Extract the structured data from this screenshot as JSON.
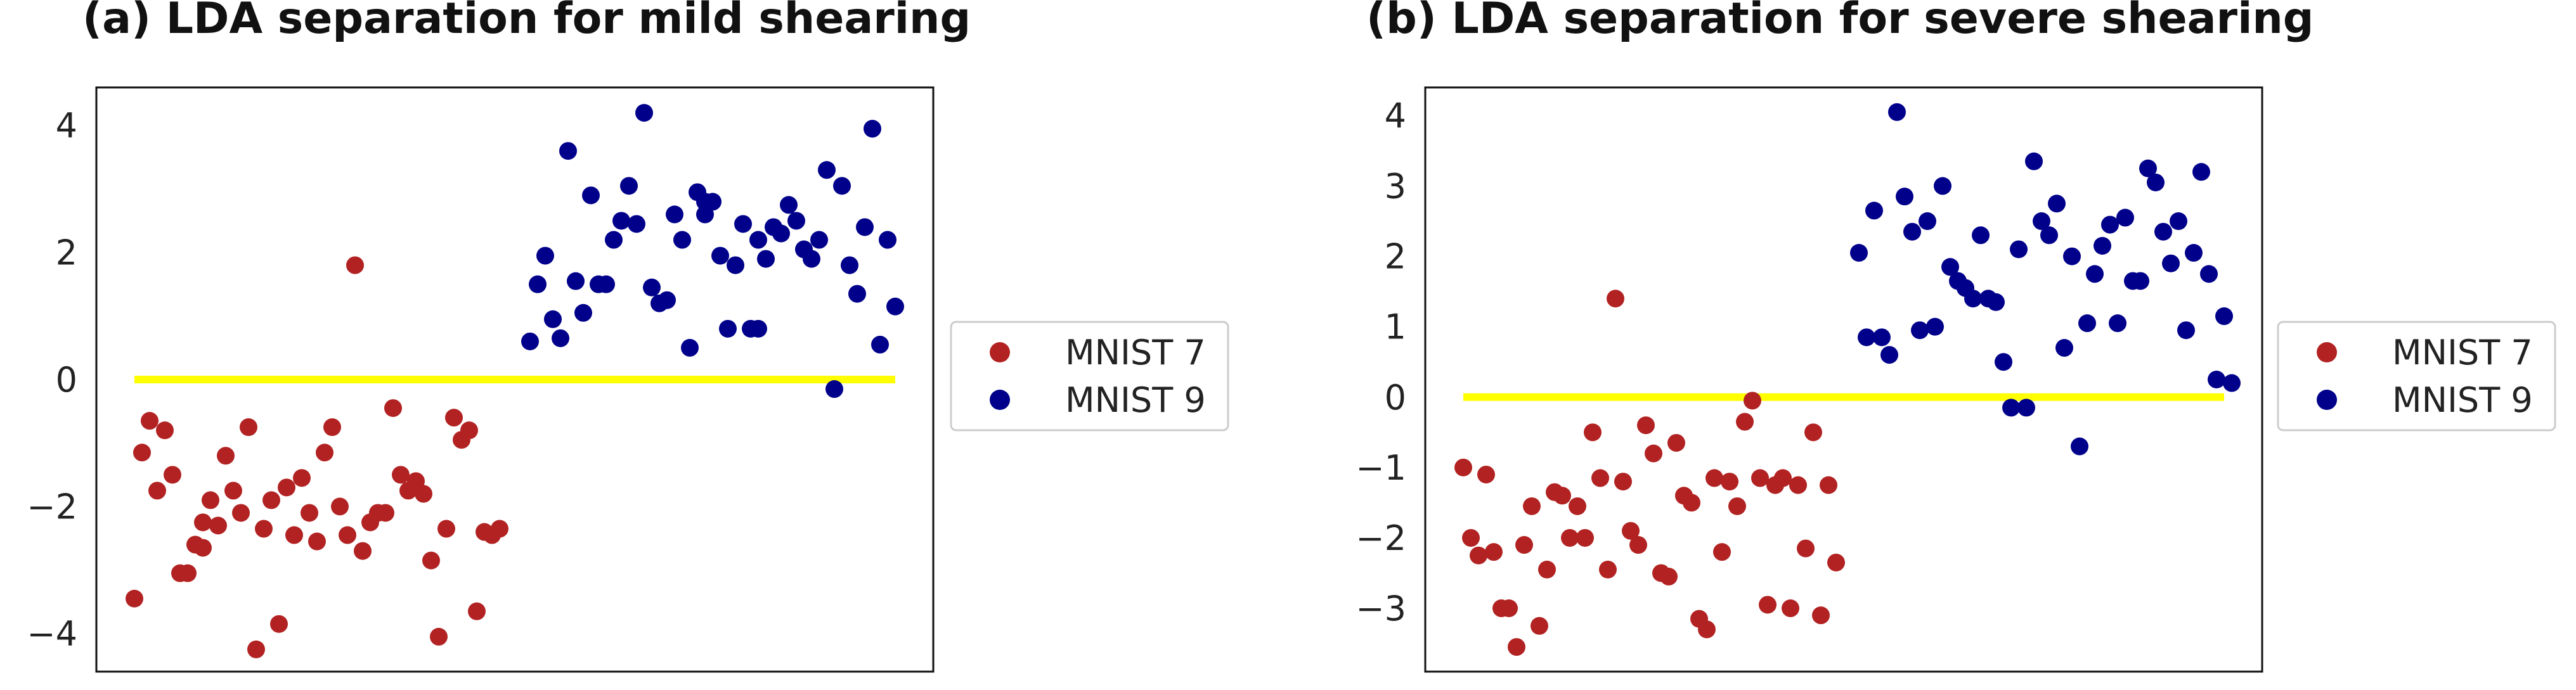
{
  "chart_data": [
    {
      "type": "scatter",
      "title": "(a) LDA separation for mild shearing",
      "xlabel": "",
      "ylabel": "",
      "xlim": [
        -0.05,
        1.05
      ],
      "ylim": [
        -4.6,
        4.6
      ],
      "yticks": [
        4,
        2,
        0,
        -2,
        -4
      ],
      "ytick_labels": [
        "4",
        "2",
        "0",
        "−2",
        "−4"
      ],
      "grid": false,
      "legend": "outside-right",
      "threshold_line": {
        "y": 0,
        "x_range": [
          0.0,
          1.0
        ],
        "color": "#ffff00"
      },
      "series": [
        {
          "name": "MNIST 7",
          "color": "#b22222",
          "points": [
            [
              0.0,
              -3.45
            ],
            [
              0.01,
              -1.15
            ],
            [
              0.02,
              -0.65
            ],
            [
              0.03,
              -1.75
            ],
            [
              0.04,
              -0.8
            ],
            [
              0.05,
              -1.5
            ],
            [
              0.06,
              -3.05
            ],
            [
              0.07,
              -3.05
            ],
            [
              0.08,
              -2.6
            ],
            [
              0.09,
              -2.25
            ],
            [
              0.09,
              -2.65
            ],
            [
              0.1,
              -1.9
            ],
            [
              0.11,
              -2.3
            ],
            [
              0.12,
              -1.2
            ],
            [
              0.13,
              -1.75
            ],
            [
              0.14,
              -2.1
            ],
            [
              0.15,
              -0.75
            ],
            [
              0.16,
              -4.25
            ],
            [
              0.17,
              -2.35
            ],
            [
              0.18,
              -1.9
            ],
            [
              0.19,
              -3.85
            ],
            [
              0.2,
              -1.7
            ],
            [
              0.21,
              -2.45
            ],
            [
              0.22,
              -1.55
            ],
            [
              0.23,
              -2.1
            ],
            [
              0.24,
              -2.55
            ],
            [
              0.25,
              -1.15
            ],
            [
              0.26,
              -0.75
            ],
            [
              0.27,
              -2.0
            ],
            [
              0.28,
              -2.45
            ],
            [
              0.29,
              1.8
            ],
            [
              0.3,
              -2.7
            ],
            [
              0.31,
              -2.25
            ],
            [
              0.32,
              -2.1
            ],
            [
              0.33,
              -2.1
            ],
            [
              0.34,
              -0.45
            ],
            [
              0.35,
              -1.5
            ],
            [
              0.36,
              -1.75
            ],
            [
              0.37,
              -1.6
            ],
            [
              0.38,
              -1.8
            ],
            [
              0.39,
              -2.85
            ],
            [
              0.4,
              -4.05
            ],
            [
              0.41,
              -2.35
            ],
            [
              0.42,
              -0.6
            ],
            [
              0.43,
              -0.95
            ],
            [
              0.44,
              -0.8
            ],
            [
              0.45,
              -3.65
            ],
            [
              0.46,
              -2.4
            ],
            [
              0.47,
              -2.45
            ],
            [
              0.48,
              -2.35
            ]
          ]
        },
        {
          "name": "MNIST 9",
          "color": "#00008b",
          "points": [
            [
              0.52,
              0.6
            ],
            [
              0.53,
              1.5
            ],
            [
              0.54,
              1.95
            ],
            [
              0.55,
              0.95
            ],
            [
              0.56,
              0.65
            ],
            [
              0.57,
              3.6
            ],
            [
              0.58,
              1.55
            ],
            [
              0.59,
              1.05
            ],
            [
              0.6,
              2.9
            ],
            [
              0.61,
              1.5
            ],
            [
              0.62,
              1.5
            ],
            [
              0.63,
              2.2
            ],
            [
              0.64,
              2.5
            ],
            [
              0.65,
              3.05
            ],
            [
              0.66,
              2.45
            ],
            [
              0.67,
              4.2
            ],
            [
              0.68,
              1.45
            ],
            [
              0.69,
              1.2
            ],
            [
              0.7,
              1.25
            ],
            [
              0.71,
              2.6
            ],
            [
              0.72,
              2.2
            ],
            [
              0.73,
              0.5
            ],
            [
              0.74,
              2.95
            ],
            [
              0.75,
              2.8
            ],
            [
              0.75,
              2.6
            ],
            [
              0.76,
              2.8
            ],
            [
              0.77,
              1.95
            ],
            [
              0.78,
              0.8
            ],
            [
              0.79,
              1.8
            ],
            [
              0.8,
              2.45
            ],
            [
              0.81,
              0.8
            ],
            [
              0.82,
              2.2
            ],
            [
              0.82,
              0.8
            ],
            [
              0.83,
              1.9
            ],
            [
              0.84,
              2.4
            ],
            [
              0.85,
              2.3
            ],
            [
              0.86,
              2.75
            ],
            [
              0.87,
              2.5
            ],
            [
              0.88,
              2.05
            ],
            [
              0.89,
              1.9
            ],
            [
              0.9,
              2.2
            ],
            [
              0.91,
              3.3
            ],
            [
              0.92,
              -0.15
            ],
            [
              0.93,
              3.05
            ],
            [
              0.94,
              1.8
            ],
            [
              0.95,
              1.35
            ],
            [
              0.96,
              2.4
            ],
            [
              0.97,
              3.95
            ],
            [
              0.98,
              0.55
            ],
            [
              0.99,
              2.2
            ],
            [
              1.0,
              1.15
            ]
          ]
        }
      ]
    },
    {
      "type": "scatter",
      "title": "(b) LDA separation for severe shearing",
      "xlabel": "",
      "ylabel": "",
      "xlim": [
        -0.05,
        1.05
      ],
      "ylim": [
        -3.9,
        4.4
      ],
      "yticks": [
        4,
        3,
        2,
        1,
        0,
        -1,
        -2,
        -3
      ],
      "ytick_labels": [
        "4",
        "3",
        "2",
        "1",
        "0",
        "−1",
        "−2",
        "−3"
      ],
      "grid": false,
      "legend": "outside-right",
      "threshold_line": {
        "y": 0,
        "x_range": [
          0.0,
          1.0
        ],
        "color": "#ffff00"
      },
      "series": [
        {
          "name": "MNIST 7",
          "color": "#b22222",
          "points": [
            [
              0.0,
              -1.0
            ],
            [
              0.01,
              -2.0
            ],
            [
              0.02,
              -2.25
            ],
            [
              0.03,
              -1.1
            ],
            [
              0.04,
              -2.2
            ],
            [
              0.05,
              -3.0
            ],
            [
              0.06,
              -3.0
            ],
            [
              0.07,
              -3.55
            ],
            [
              0.08,
              -2.1
            ],
            [
              0.09,
              -1.55
            ],
            [
              0.1,
              -3.25
            ],
            [
              0.11,
              -2.45
            ],
            [
              0.12,
              -1.35
            ],
            [
              0.13,
              -1.4
            ],
            [
              0.14,
              -2.0
            ],
            [
              0.15,
              -1.55
            ],
            [
              0.16,
              -2.0
            ],
            [
              0.17,
              -0.5
            ],
            [
              0.18,
              -1.15
            ],
            [
              0.19,
              -2.45
            ],
            [
              0.2,
              1.4
            ],
            [
              0.21,
              -1.2
            ],
            [
              0.22,
              -1.9
            ],
            [
              0.23,
              -2.1
            ],
            [
              0.24,
              -0.4
            ],
            [
              0.25,
              -0.8
            ],
            [
              0.26,
              -2.5
            ],
            [
              0.27,
              -2.55
            ],
            [
              0.28,
              -0.65
            ],
            [
              0.29,
              -1.4
            ],
            [
              0.3,
              -1.5
            ],
            [
              0.31,
              -3.15
            ],
            [
              0.32,
              -3.3
            ],
            [
              0.33,
              -1.15
            ],
            [
              0.34,
              -2.2
            ],
            [
              0.35,
              -1.2
            ],
            [
              0.36,
              -1.55
            ],
            [
              0.37,
              -0.35
            ],
            [
              0.38,
              -0.05
            ],
            [
              0.39,
              -1.15
            ],
            [
              0.4,
              -2.95
            ],
            [
              0.41,
              -1.25
            ],
            [
              0.42,
              -1.15
            ],
            [
              0.43,
              -3.0
            ],
            [
              0.44,
              -1.25
            ],
            [
              0.45,
              -2.15
            ],
            [
              0.46,
              -0.5
            ],
            [
              0.47,
              -3.1
            ],
            [
              0.48,
              -1.25
            ],
            [
              0.49,
              -2.35
            ]
          ]
        },
        {
          "name": "MNIST 9",
          "color": "#00008b",
          "points": [
            [
              0.52,
              2.05
            ],
            [
              0.53,
              0.85
            ],
            [
              0.54,
              2.65
            ],
            [
              0.55,
              0.85
            ],
            [
              0.56,
              0.6
            ],
            [
              0.57,
              4.05
            ],
            [
              0.58,
              2.85
            ],
            [
              0.59,
              2.35
            ],
            [
              0.6,
              0.95
            ],
            [
              0.61,
              2.5
            ],
            [
              0.62,
              1.0
            ],
            [
              0.63,
              3.0
            ],
            [
              0.64,
              1.85
            ],
            [
              0.65,
              1.65
            ],
            [
              0.66,
              1.55
            ],
            [
              0.67,
              1.4
            ],
            [
              0.68,
              2.3
            ],
            [
              0.69,
              1.4
            ],
            [
              0.7,
              1.35
            ],
            [
              0.71,
              0.5
            ],
            [
              0.72,
              -0.15
            ],
            [
              0.73,
              2.1
            ],
            [
              0.74,
              -0.15
            ],
            [
              0.75,
              3.35
            ],
            [
              0.76,
              2.5
            ],
            [
              0.77,
              2.3
            ],
            [
              0.78,
              2.75
            ],
            [
              0.79,
              0.7
            ],
            [
              0.8,
              2.0
            ],
            [
              0.81,
              -0.7
            ],
            [
              0.82,
              1.05
            ],
            [
              0.83,
              1.75
            ],
            [
              0.84,
              2.15
            ],
            [
              0.85,
              2.45
            ],
            [
              0.86,
              1.05
            ],
            [
              0.87,
              2.55
            ],
            [
              0.88,
              1.65
            ],
            [
              0.89,
              1.65
            ],
            [
              0.9,
              3.25
            ],
            [
              0.91,
              3.05
            ],
            [
              0.92,
              2.35
            ],
            [
              0.93,
              1.9
            ],
            [
              0.94,
              2.5
            ],
            [
              0.95,
              0.95
            ],
            [
              0.96,
              2.05
            ],
            [
              0.97,
              3.2
            ],
            [
              0.98,
              1.75
            ],
            [
              0.99,
              0.25
            ],
            [
              1.0,
              1.15
            ],
            [
              1.01,
              0.2
            ]
          ]
        }
      ]
    }
  ]
}
